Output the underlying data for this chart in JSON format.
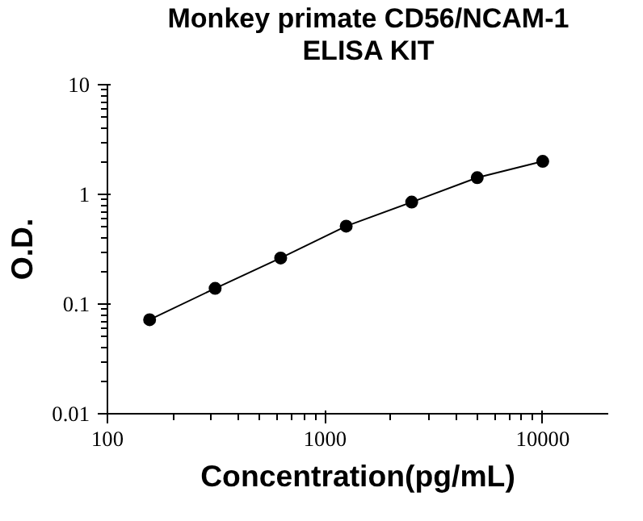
{
  "chart_data": {
    "type": "line",
    "title": "Monkey primate CD56/NCAM-1\nELISA KIT",
    "xlabel": "Concentration(pg/mL)",
    "ylabel": "O.D.",
    "x": [
      156.25,
      312.5,
      625,
      1250,
      2500,
      5000,
      10000
    ],
    "series": [
      {
        "color": "#000000",
        "values": [
          0.072,
          0.139,
          0.263,
          0.513,
          0.85,
          1.42,
          2.0
        ]
      }
    ],
    "log": "xy",
    "xlim": [
      100,
      20000
    ],
    "ylim": [
      0.01,
      10
    ],
    "xticks": [
      100,
      1000,
      10000
    ],
    "yticks": [
      0.01,
      0.1,
      1,
      10
    ],
    "marker": "circle",
    "line_style": "solid",
    "grid": false
  }
}
